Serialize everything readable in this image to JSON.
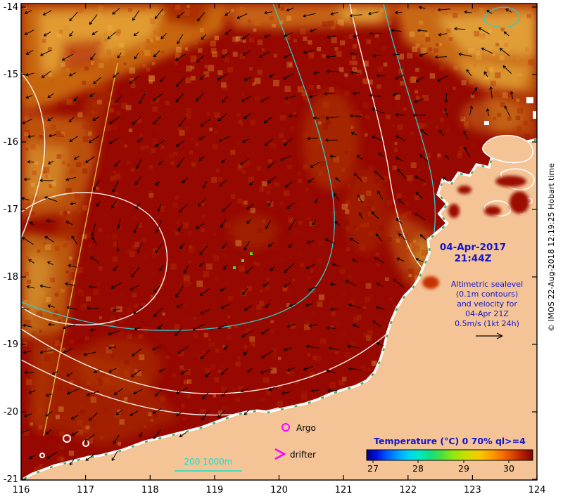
{
  "title_block": {
    "date_line1": "04-Apr-2017",
    "date_line2": "21:44Z"
  },
  "info_block": {
    "lines": [
      "Altimetric sealevel",
      "(0.1m contours)",
      "and velocity for",
      "04-Apr 21Z",
      "0.5m/s (1kt 24h)"
    ]
  },
  "axes": {
    "x_tick_labels": [
      "116",
      "117",
      "118",
      "119",
      "120",
      "121",
      "122",
      "123",
      "124"
    ],
    "y_tick_labels": [
      "-14",
      "-15",
      "-16",
      "-17",
      "-18",
      "-19",
      "-20",
      "-21"
    ]
  },
  "legend": {
    "argo": "Argo",
    "drifter": "drifter",
    "isobaths": "200 1000m"
  },
  "colorbar": {
    "title": "Temperature (°C) 0 70% ql>=4",
    "tick_labels": [
      "27",
      "28",
      "29",
      "30"
    ]
  },
  "credit": "© IMOS 22-Aug-2018 12:19:25 Hobart time",
  "colors": {
    "ocean_base": "#970800",
    "land": "#f4c496",
    "annotation_blue": "#1414cc",
    "contour_white": "#ffffff",
    "contour_cyan": "#35c8c8",
    "isobath_legend_cyan": "#10e0c8",
    "marker_magenta": "#ff00ff",
    "vector_black": "#000000"
  }
}
